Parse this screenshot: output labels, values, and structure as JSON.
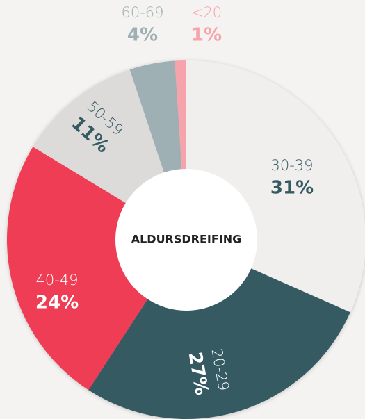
{
  "chart_data": {
    "type": "donut",
    "title": "ALDURSDREIFING",
    "categories": [
      "30-39",
      "20-29",
      "40-49",
      "50-59",
      "60-69",
      "<20"
    ],
    "values": [
      31,
      27,
      24,
      11,
      4,
      1
    ],
    "value_labels": [
      "31%",
      "27%",
      "24%",
      "11%",
      "4%",
      "1%"
    ],
    "colors": [
      "#f0efed",
      "#365a62",
      "#ee3d54",
      "#dcdbd9",
      "#9fb0b5",
      "#f7a3ab"
    ],
    "label_colors": [
      "#365a62",
      "#ffffff",
      "#ffffff",
      "#365a62",
      "#9fb0b5",
      "#f7a3ab"
    ]
  }
}
